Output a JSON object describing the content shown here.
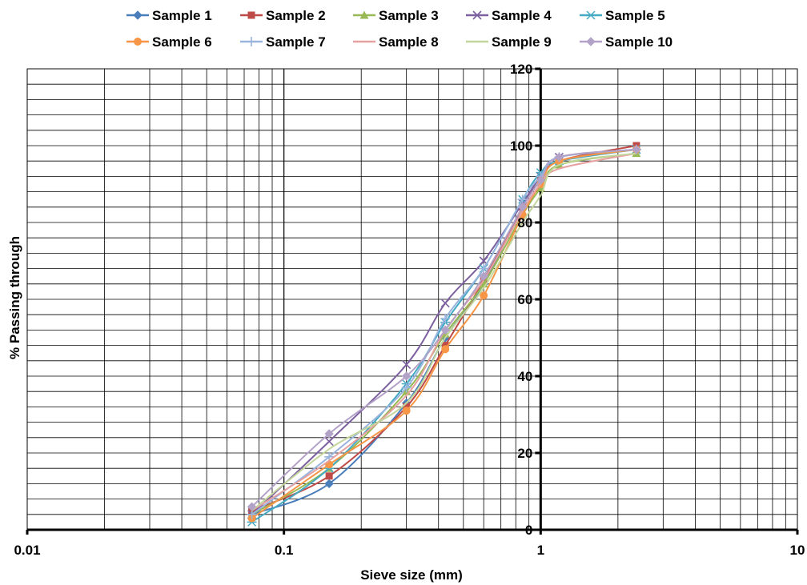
{
  "chart_data": {
    "type": "line",
    "title": "",
    "xlabel": "Sieve size (mm)",
    "ylabel": "% Passing through",
    "xscale": "log",
    "xlim": [
      0.01,
      10
    ],
    "ylim": [
      0,
      120
    ],
    "xticks": [
      {
        "value": 0.01,
        "label": "0.01"
      },
      {
        "value": 0.1,
        "label": "0.1"
      },
      {
        "value": 1,
        "label": "1"
      },
      {
        "value": 10,
        "label": "10"
      }
    ],
    "yticks": [
      {
        "value": 0,
        "label": "0"
      },
      {
        "value": 20,
        "label": "20"
      },
      {
        "value": 40,
        "label": "40"
      },
      {
        "value": 60,
        "label": "60"
      },
      {
        "value": 80,
        "label": "80"
      },
      {
        "value": 100,
        "label": "100"
      },
      {
        "value": 120,
        "label": "120"
      }
    ],
    "grid": true,
    "legend_position": "top",
    "x": [
      0.075,
      0.15,
      0.3,
      0.425,
      0.6,
      0.85,
      1.0,
      1.18,
      2.36
    ],
    "series": [
      {
        "name": "Sample 1",
        "color": "#4a7ebb",
        "marker": "diamond",
        "values": [
          4,
          12,
          33,
          50,
          64,
          84,
          91,
          96,
          99
        ]
      },
      {
        "name": "Sample 2",
        "color": "#be4b48",
        "marker": "square",
        "values": [
          5,
          14,
          32,
          48,
          65,
          84,
          91,
          96,
          100
        ]
      },
      {
        "name": "Sample 3",
        "color": "#98b954",
        "marker": "triangle",
        "values": [
          4,
          16,
          36,
          51,
          64,
          82,
          89,
          95,
          98
        ]
      },
      {
        "name": "Sample 4",
        "color": "#7d60a0",
        "marker": "x",
        "values": [
          4,
          23,
          43,
          59,
          70,
          85,
          92,
          97,
          99
        ]
      },
      {
        "name": "Sample 5",
        "color": "#46aac5",
        "marker": "star",
        "values": [
          2,
          16,
          38,
          54,
          68,
          86,
          93,
          96,
          99
        ]
      },
      {
        "name": "Sample 6",
        "color": "#f79646",
        "marker": "circle",
        "values": [
          3,
          17,
          31,
          47,
          61,
          82,
          90,
          96,
          99
        ]
      },
      {
        "name": "Sample 7",
        "color": "#99b4dd",
        "marker": "plus",
        "values": [
          4,
          19,
          37,
          55,
          68,
          86,
          92,
          97,
          99
        ]
      },
      {
        "name": "Sample 8",
        "color": "#e6a1a0",
        "marker": "none",
        "values": [
          5,
          18,
          35,
          52,
          65,
          83,
          90,
          94,
          98
        ]
      },
      {
        "name": "Sample 9",
        "color": "#c3d69b",
        "marker": "none",
        "values": [
          5,
          21,
          33,
          50,
          63,
          80,
          87,
          95,
          98
        ]
      },
      {
        "name": "Sample 10",
        "color": "#b3a2c7",
        "marker": "diamond",
        "values": [
          6,
          25,
          40,
          52,
          66,
          84,
          91,
          97,
          99
        ]
      }
    ]
  }
}
